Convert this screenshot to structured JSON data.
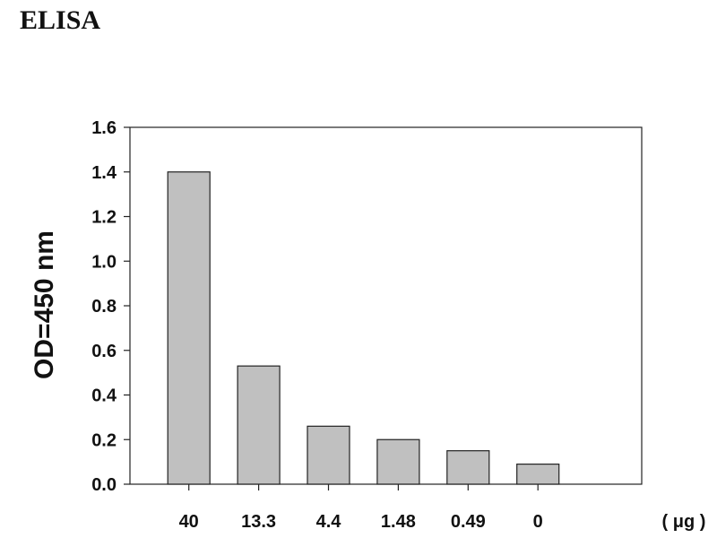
{
  "chart_data": {
    "type": "bar",
    "title": "ELISA",
    "xlabel": "",
    "ylabel": "OD=450 nm",
    "x_unit": "( μg )",
    "categories": [
      "40",
      "13.3",
      "4.4",
      "1.48",
      "0.49",
      "0"
    ],
    "values": [
      1.4,
      0.53,
      0.26,
      0.2,
      0.15,
      0.09
    ],
    "ylim": [
      0,
      1.6
    ],
    "yticks": [
      "0.0",
      "0.2",
      "0.4",
      "0.6",
      "0.8",
      "1.0",
      "1.2",
      "1.4",
      "1.6"
    ],
    "grid": false,
    "bar_color": "#c0c0c0",
    "edge_color": "#222222"
  }
}
